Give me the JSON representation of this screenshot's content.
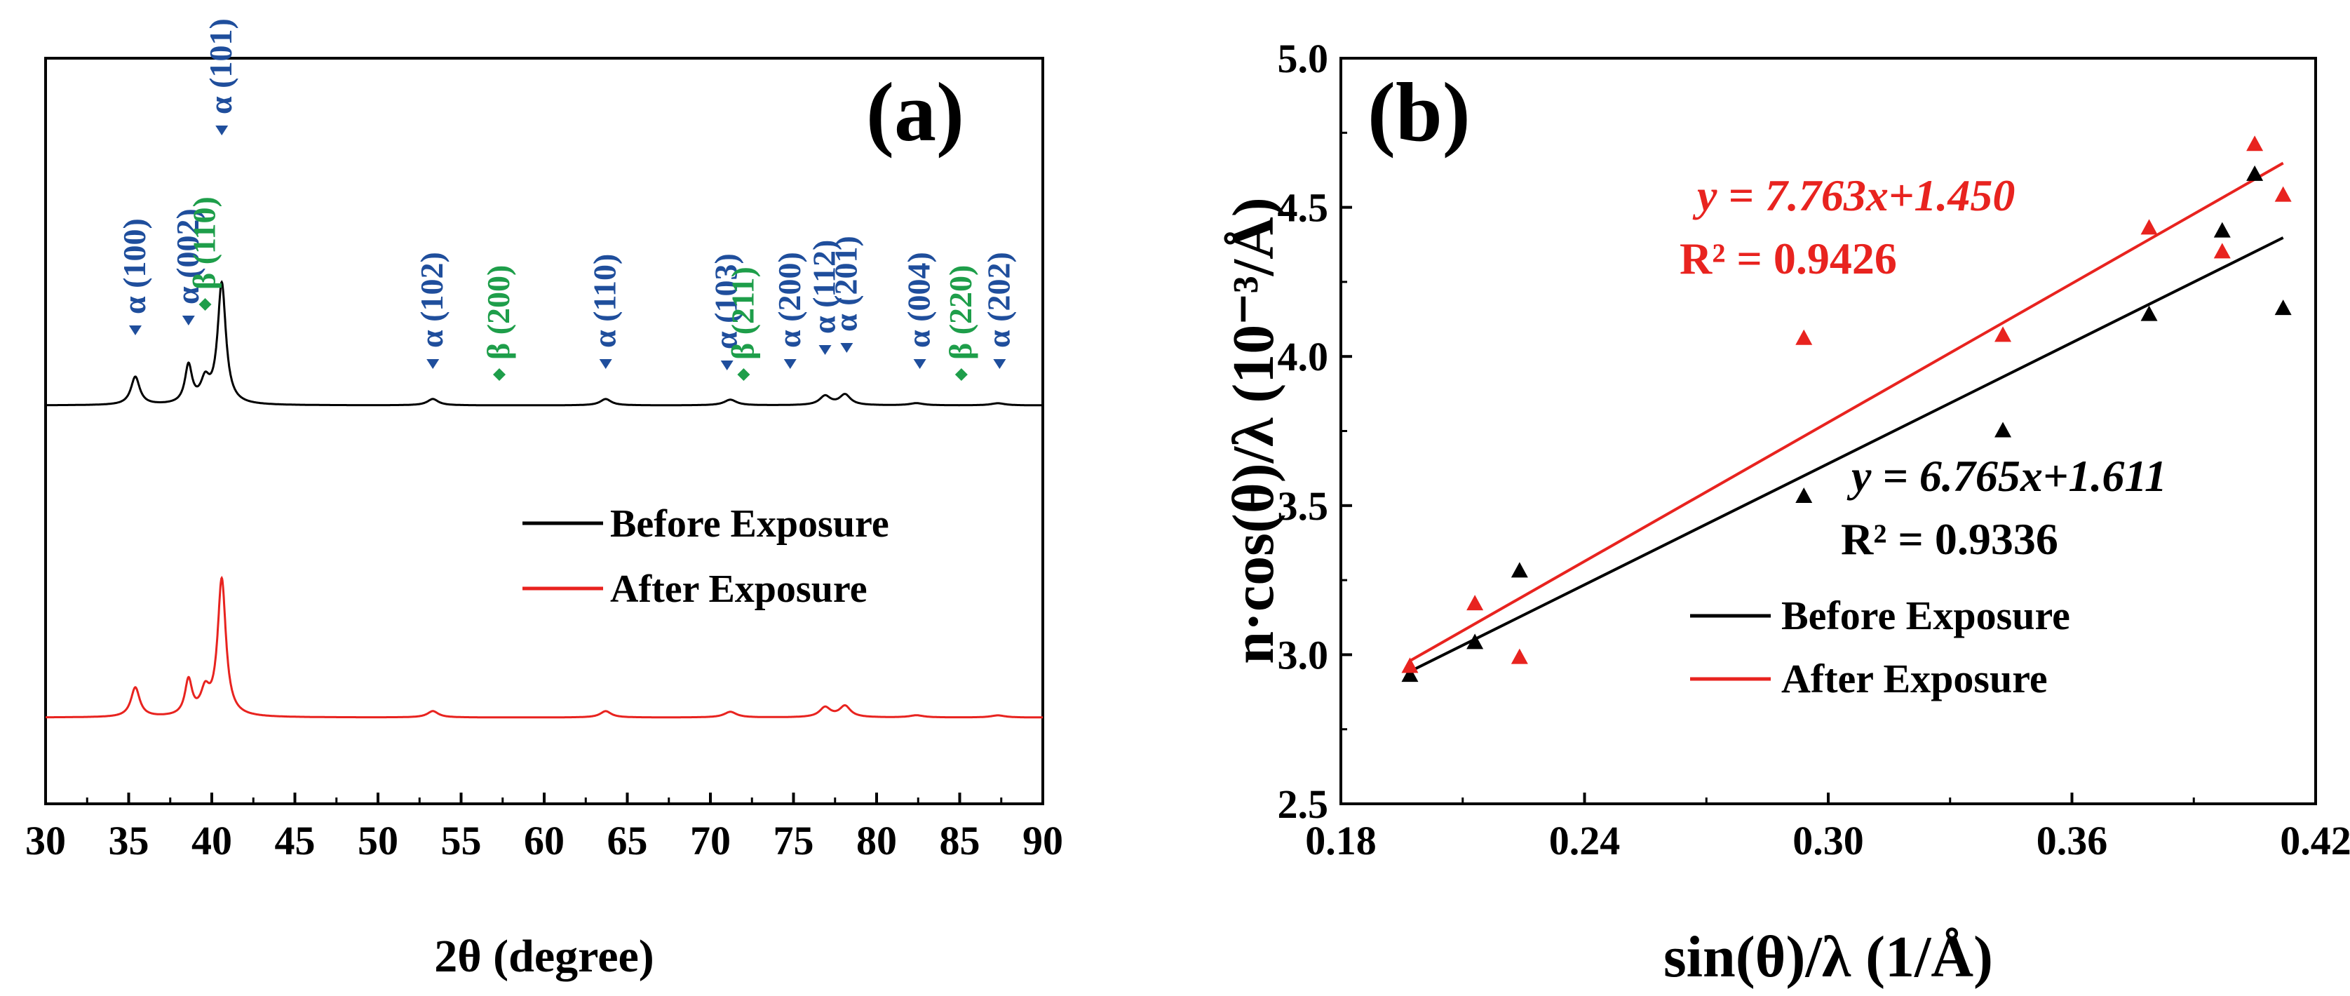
{
  "colors": {
    "alpha": "#1f4e9c",
    "beta": "#1e9e4a",
    "before": "#000000",
    "after": "#e8231f"
  },
  "chart_data": [
    {
      "type": "line",
      "panel": "(a)",
      "xlabel": "2θ (degree)",
      "ylabel": "",
      "xlim": [
        30,
        90
      ],
      "xticks": [
        30,
        35,
        40,
        45,
        50,
        55,
        60,
        65,
        70,
        75,
        80,
        85,
        90
      ],
      "tick_labels": [
        "30",
        "35",
        "40",
        "45",
        "50",
        "55",
        "60",
        "65",
        "70",
        "75",
        "80",
        "85",
        "90"
      ],
      "legend": {
        "position": "center-right",
        "entries": [
          "Before Exposure",
          "After Exposure"
        ]
      },
      "series": [
        {
          "name": "Before Exposure",
          "color": "#000000",
          "peaks": [
            {
              "x": 35.4,
              "h": 40,
              "w": 0.32
            },
            {
              "x": 38.6,
              "h": 54,
              "w": 0.26
            },
            {
              "x": 39.6,
              "h": 30,
              "w": 0.32
            },
            {
              "x": 40.6,
              "h": 172,
              "w": 0.3
            },
            {
              "x": 53.3,
              "h": 9,
              "w": 0.4
            },
            {
              "x": 63.7,
              "h": 9,
              "w": 0.4
            },
            {
              "x": 71.2,
              "h": 8,
              "w": 0.45
            },
            {
              "x": 76.9,
              "h": 13,
              "w": 0.4
            },
            {
              "x": 78.1,
              "h": 15,
              "w": 0.4
            },
            {
              "x": 82.4,
              "h": 3,
              "w": 0.5
            },
            {
              "x": 87.3,
              "h": 3,
              "w": 0.5
            }
          ]
        },
        {
          "name": "After Exposure",
          "color": "#e8231f",
          "peaks": [
            {
              "x": 35.4,
              "h": 42,
              "w": 0.32
            },
            {
              "x": 38.6,
              "h": 50,
              "w": 0.26
            },
            {
              "x": 39.6,
              "h": 32,
              "w": 0.32
            },
            {
              "x": 40.6,
              "h": 195,
              "w": 0.3
            },
            {
              "x": 53.3,
              "h": 9,
              "w": 0.4
            },
            {
              "x": 63.7,
              "h": 9,
              "w": 0.4
            },
            {
              "x": 71.2,
              "h": 8,
              "w": 0.45
            },
            {
              "x": 76.9,
              "h": 14,
              "w": 0.4
            },
            {
              "x": 78.1,
              "h": 16,
              "w": 0.4
            },
            {
              "x": 82.4,
              "h": 3,
              "w": 0.5
            },
            {
              "x": 87.3,
              "h": 3,
              "w": 0.5
            }
          ]
        }
      ],
      "peak_labels": [
        {
          "text": "α (100)",
          "phase": "alpha",
          "x": 35.4
        },
        {
          "text": "α (002)",
          "phase": "alpha",
          "x": 38.6
        },
        {
          "text": "β (110)",
          "phase": "beta",
          "x": 39.6
        },
        {
          "text": "α (101)",
          "phase": "alpha",
          "x": 40.6
        },
        {
          "text": "α (102)",
          "phase": "alpha",
          "x": 53.3
        },
        {
          "text": "β (200)",
          "phase": "beta",
          "x": 57.3
        },
        {
          "text": "α (110)",
          "phase": "alpha",
          "x": 63.7
        },
        {
          "text": "α (103)",
          "phase": "alpha",
          "x": 71.0
        },
        {
          "text": "β (211)",
          "phase": "beta",
          "x": 72.0
        },
        {
          "text": "α (200)",
          "phase": "alpha",
          "x": 74.8
        },
        {
          "text": "α (112)",
          "phase": "alpha",
          "x": 76.9
        },
        {
          "text": "α (201)",
          "phase": "alpha",
          "x": 78.2
        },
        {
          "text": "α (004)",
          "phase": "alpha",
          "x": 82.6
        },
        {
          "text": "β (220)",
          "phase": "beta",
          "x": 85.1
        },
        {
          "text": "α (202)",
          "phase": "alpha",
          "x": 87.4
        }
      ]
    },
    {
      "type": "scatter",
      "panel": "(b)",
      "xlabel": "sin(θ)/λ (1/Å)",
      "ylabel": "n·cos(θ)/λ (10⁻³/Å)",
      "xlim": [
        0.18,
        0.42
      ],
      "ylim": [
        2.5,
        5.0
      ],
      "xticks": [
        0.18,
        0.24,
        0.3,
        0.36,
        0.42
      ],
      "yticks": [
        2.5,
        3.0,
        3.5,
        4.0,
        4.5,
        5.0
      ],
      "xtick_labels": [
        "0.18",
        "0.24",
        "0.30",
        "0.36",
        "0.42"
      ],
      "ytick_labels": [
        "2.5",
        "3.0",
        "3.5",
        "4.0",
        "4.5",
        "5.0"
      ],
      "legend": {
        "position": "bottom-right",
        "entries": [
          "Before Exposure",
          "After Exposure"
        ]
      },
      "series": [
        {
          "name": "Before Exposure",
          "color": "#000000",
          "marker": "triangle",
          "x": [
            0.197,
            0.213,
            0.224,
            0.294,
            0.343,
            0.379,
            0.397,
            0.405,
            0.412
          ],
          "y": [
            2.93,
            3.04,
            3.28,
            3.53,
            3.75,
            4.14,
            4.42,
            4.61,
            4.16
          ],
          "fit": {
            "slope": 6.765,
            "intercept": 1.611,
            "r2": "0.9336"
          },
          "equation": "y = 6.765x+1.611",
          "r2_label": "R² = 0.9336"
        },
        {
          "name": "After Exposure",
          "color": "#e8231f",
          "marker": "triangle",
          "x": [
            0.197,
            0.213,
            0.224,
            0.294,
            0.343,
            0.379,
            0.397,
            0.405,
            0.412
          ],
          "y": [
            2.96,
            3.17,
            2.99,
            4.06,
            4.07,
            4.43,
            4.35,
            4.71,
            4.54
          ],
          "fit": {
            "slope": 7.763,
            "intercept": 1.45,
            "r2": "0.9426"
          },
          "equation": "y = 7.763x+1.450",
          "r2_label": "R² = 0.9426"
        }
      ]
    }
  ]
}
